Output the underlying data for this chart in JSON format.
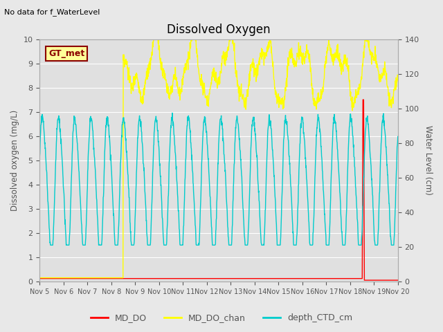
{
  "title": "Dissolved Oxygen",
  "subtitle": "No data for f_WaterLevel",
  "ylabel_left": "Dissolved oxygen (mg/L)",
  "ylabel_right": "Water Level (cm)",
  "ylim_left": [
    0.0,
    10.0
  ],
  "ylim_right": [
    0,
    140
  ],
  "xlim": [
    0,
    15
  ],
  "x_tick_labels": [
    "Nov 5",
    "Nov 6",
    "Nov 7",
    "Nov 8",
    "Nov 9",
    "Nov 10",
    "Nov 11",
    "Nov 12",
    "Nov 13",
    "Nov 14",
    "Nov 15",
    "Nov 16",
    "Nov 17",
    "Nov 18",
    "Nov 19",
    "Nov 20"
  ],
  "legend_labels": [
    "MD_DO",
    "MD_DO_chan",
    "depth_CTD_cm"
  ],
  "legend_colors": [
    "#ff0000",
    "#ffff00",
    "#00cccc"
  ],
  "annotation_text": "GT_met",
  "annotation_color": "#8b0000",
  "annotation_bg": "#ffff99",
  "fig_bg": "#e8e8e8",
  "plot_bg": "#e0e0e0",
  "grid_color": "#ffffff",
  "text_color": "#555555",
  "line_colors": [
    "#ff0000",
    "#ffff00",
    "#00cccc"
  ],
  "yticks_left": [
    0.0,
    1.0,
    2.0,
    3.0,
    4.0,
    5.0,
    6.0,
    7.0,
    8.0,
    9.0,
    10.0
  ],
  "yticks_right": [
    0,
    20,
    40,
    60,
    80,
    100,
    120,
    140
  ]
}
